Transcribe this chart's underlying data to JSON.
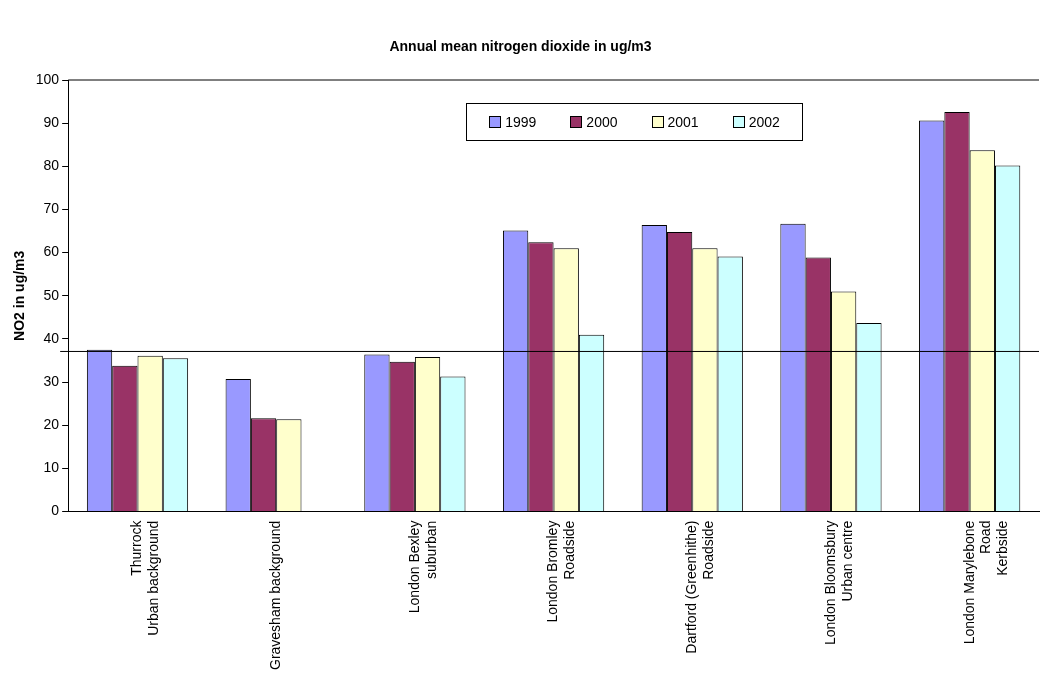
{
  "chart_data": {
    "type": "bar",
    "title": "Annual mean nitrogen dioxide in ug/m3",
    "ylabel": "NO2 in ug/m3",
    "categories": [
      "Thurrock\nUrban background",
      "Gravesham background",
      "London Bexley\nsuburban",
      "London Bromley\nRoadside",
      "Dartford (Greenhithe)\nRoadside",
      "London Bloomsbury\nUrban centre",
      "London Marylebone\nRoad\nKerbside"
    ],
    "series": [
      {
        "name": "1999",
        "color": "#9999ff",
        "values": [
          37.5,
          30.7,
          36.4,
          65.1,
          66.4,
          66.7,
          90.6
        ]
      },
      {
        "name": "2000",
        "color": "#993366",
        "values": [
          33.8,
          21.6,
          34.7,
          62.4,
          64.8,
          58.9,
          92.6
        ]
      },
      {
        "name": "2001",
        "color": "#ffffcc",
        "values": [
          36.1,
          21.4,
          35.8,
          61.0,
          61.0,
          51.0,
          83.7
        ]
      },
      {
        "name": "2002",
        "color": "#ccffff",
        "values": [
          35.5,
          null,
          31.3,
          41.0,
          59.1,
          43.7,
          80.2
        ]
      }
    ],
    "ylim": [
      0,
      100
    ],
    "yticks": [
      0,
      10,
      20,
      30,
      40,
      50,
      60,
      70,
      80,
      90,
      100
    ],
    "grid": false,
    "legend": "top",
    "ref_lines": [
      {
        "axis": "y",
        "value": 37.1,
        "color": "#000000"
      }
    ]
  }
}
